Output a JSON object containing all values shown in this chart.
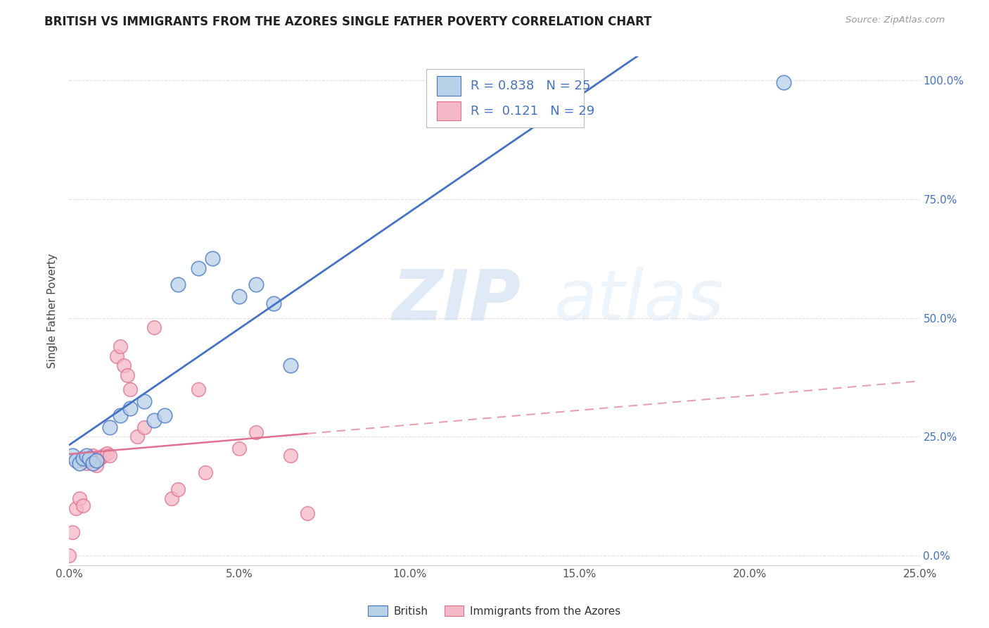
{
  "title": "BRITISH VS IMMIGRANTS FROM THE AZORES SINGLE FATHER POVERTY CORRELATION CHART",
  "source": "Source: ZipAtlas.com",
  "ylabel": "Single Father Poverty",
  "watermark_zip": "ZIP",
  "watermark_atlas": "atlas",
  "british_R": 0.838,
  "british_N": 25,
  "azores_R": 0.121,
  "azores_N": 29,
  "british_color": "#b8d0e8",
  "azores_color": "#f5b8c8",
  "british_line_color": "#4472c4",
  "azores_line_color": "#e07090",
  "azores_dash_color": "#e8a0b0",
  "xlim": [
    0,
    0.25
  ],
  "ylim": [
    -0.02,
    1.05
  ],
  "xticks": [
    0.0,
    0.05,
    0.1,
    0.15,
    0.2,
    0.25
  ],
  "yticks": [
    0.0,
    0.25,
    0.5,
    0.75,
    1.0
  ],
  "xtick_labels": [
    "0.0%",
    "5.0%",
    "10.0%",
    "15.0%",
    "20.0%",
    "25.0%"
  ],
  "ytick_labels": [
    "0.0%",
    "25.0%",
    "50.0%",
    "75.0%",
    "100.0%"
  ],
  "british_x": [
    0.001,
    0.002,
    0.003,
    0.004,
    0.005,
    0.006,
    0.007,
    0.008,
    0.012,
    0.015,
    0.018,
    0.022,
    0.025,
    0.028,
    0.032,
    0.038,
    0.042,
    0.05,
    0.055,
    0.06,
    0.065,
    0.12,
    0.13,
    0.145,
    0.21
  ],
  "british_y": [
    0.21,
    0.2,
    0.195,
    0.205,
    0.21,
    0.205,
    0.195,
    0.2,
    0.27,
    0.295,
    0.31,
    0.325,
    0.285,
    0.295,
    0.57,
    0.605,
    0.625,
    0.545,
    0.57,
    0.53,
    0.4,
    0.995,
    0.995,
    0.995,
    0.995
  ],
  "azores_x": [
    0.0,
    0.001,
    0.002,
    0.003,
    0.004,
    0.005,
    0.006,
    0.007,
    0.008,
    0.009,
    0.01,
    0.011,
    0.012,
    0.014,
    0.015,
    0.016,
    0.017,
    0.018,
    0.02,
    0.022,
    0.025,
    0.03,
    0.032,
    0.038,
    0.04,
    0.05,
    0.055,
    0.065,
    0.07
  ],
  "azores_y": [
    0.0,
    0.05,
    0.1,
    0.12,
    0.105,
    0.195,
    0.2,
    0.21,
    0.19,
    0.205,
    0.21,
    0.215,
    0.21,
    0.42,
    0.44,
    0.4,
    0.38,
    0.35,
    0.25,
    0.27,
    0.48,
    0.12,
    0.14,
    0.35,
    0.175,
    0.225,
    0.26,
    0.21,
    0.09
  ],
  "title_color": "#222222",
  "right_ytick_color": "#4472c4",
  "background_color": "#ffffff",
  "grid_color": "#dddddd",
  "legend_text_color": "#4472c4"
}
